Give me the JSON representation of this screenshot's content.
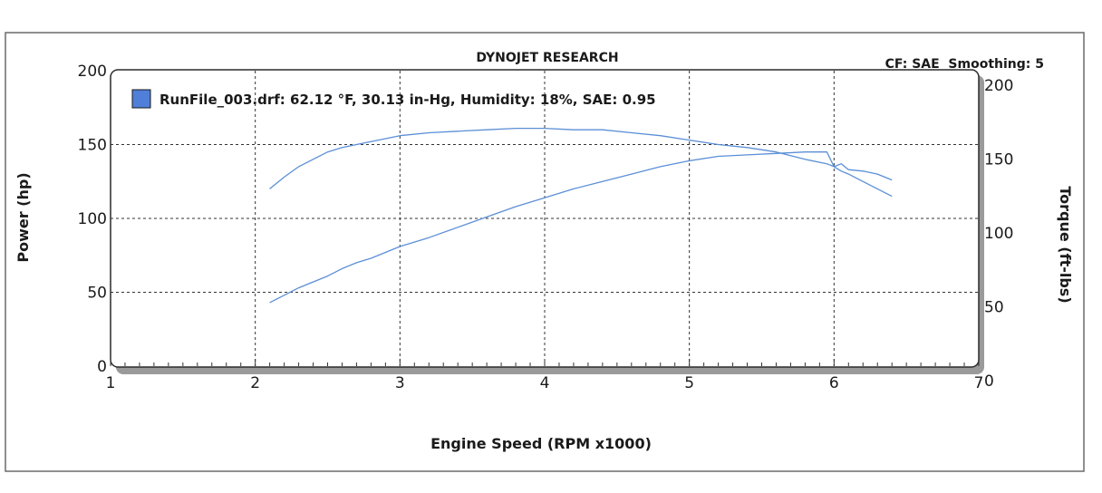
{
  "chart_data": {
    "type": "line",
    "title": "DYNOJET RESEARCH",
    "info": "CF: SAE  Smoothing: 5",
    "xlabel": "Engine Speed (RPM x1000)",
    "ylabel_left": "Power (hp)",
    "ylabel_right": "Torque (ft-lbs)",
    "xlim": [
      1,
      7
    ],
    "ylim_left": [
      0,
      200
    ],
    "ylim_right": [
      0,
      200
    ],
    "x_ticks": [
      "1",
      "2",
      "3",
      "4",
      "5",
      "6",
      "7"
    ],
    "y_left_ticks": [
      "0",
      "50",
      "100",
      "150",
      "200"
    ],
    "y_right_ticks": [
      "0",
      "50",
      "100",
      "150",
      "200"
    ],
    "grid": true,
    "line_color": "#5b8fd6",
    "legend": {
      "placement": "top-left",
      "label": "RunFile_003.drf: 62.12 °F, 30.13 in-Hg, Humidity: 18%, SAE: 0.95",
      "swatch_color": "#4f7fd8"
    },
    "series": [
      {
        "axis": "left",
        "x": [
          2.1,
          2.2,
          2.3,
          2.4,
          2.5,
          2.6,
          2.7,
          2.8,
          2.9,
          3.0,
          3.2,
          3.4,
          3.6,
          3.8,
          4.0,
          4.2,
          4.4,
          4.6,
          4.8,
          5.0,
          5.2,
          5.4,
          5.6,
          5.8,
          5.95,
          6.0,
          6.05,
          6.1,
          6.2,
          6.3,
          6.4
        ],
        "y": [
          43,
          48,
          53,
          57,
          61,
          66,
          70,
          73,
          77,
          81,
          87,
          94,
          101,
          108,
          114,
          120,
          125,
          130,
          135,
          139,
          142,
          143,
          144,
          145,
          145,
          135,
          137,
          133,
          132,
          130,
          126
        ]
      },
      {
        "axis": "right",
        "x": [
          2.1,
          2.2,
          2.3,
          2.4,
          2.5,
          2.6,
          2.7,
          2.8,
          2.9,
          3.0,
          3.2,
          3.4,
          3.6,
          3.8,
          4.0,
          4.2,
          4.4,
          4.6,
          4.8,
          5.0,
          5.2,
          5.4,
          5.6,
          5.8,
          5.95,
          6.0,
          6.05,
          6.1,
          6.2,
          6.3,
          6.4
        ],
        "y": [
          120,
          128,
          135,
          140,
          145,
          148,
          150,
          152,
          154,
          156,
          158,
          159,
          160,
          161,
          161,
          160,
          160,
          158,
          156,
          153,
          150,
          148,
          145,
          140,
          137,
          135,
          132,
          130,
          125,
          120,
          115
        ]
      }
    ]
  }
}
